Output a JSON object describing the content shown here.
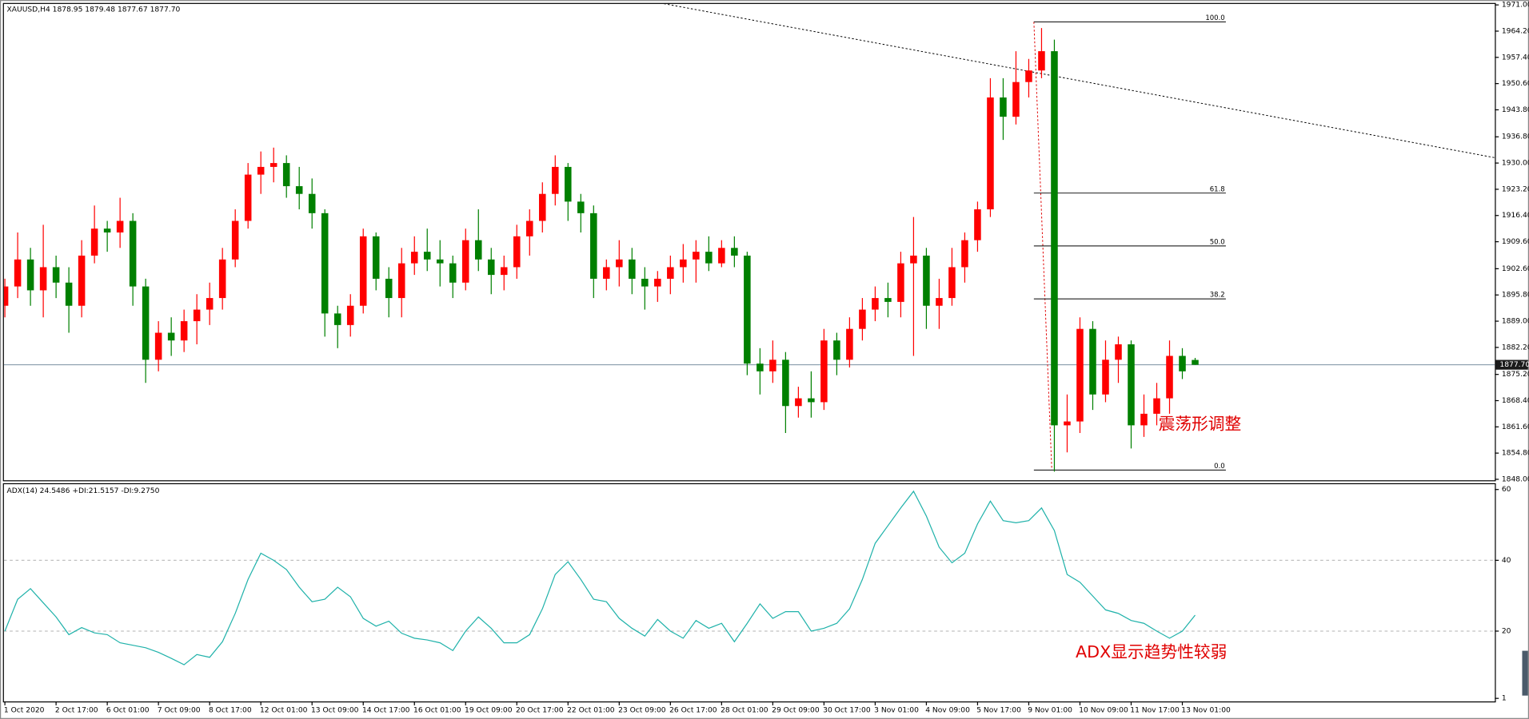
{
  "chart_data": {
    "type": "candlestick",
    "header": "XAUUSD,H4  1878.95 1879.48 1877.67 1877.70",
    "up_color": "#ff0000",
    "down_color": "#008000",
    "ylim": [
      1848,
      1971
    ],
    "yticks": [
      {
        "value": 1971,
        "label": "1971.00"
      },
      {
        "value": 1964.2,
        "label": "1964.20"
      },
      {
        "value": 1957.4,
        "label": "1957.40"
      },
      {
        "value": 1950.6,
        "label": "1950.60"
      },
      {
        "value": 1943.8,
        "label": "1943.80"
      },
      {
        "value": 1936.8,
        "label": "1936.80"
      },
      {
        "value": 1930,
        "label": "1930.00"
      },
      {
        "value": 1923.2,
        "label": "1923.20"
      },
      {
        "value": 1916.4,
        "label": "1916.40"
      },
      {
        "value": 1909.6,
        "label": "1909.60"
      },
      {
        "value": 1902.6,
        "label": "1902.60"
      },
      {
        "value": 1895.8,
        "label": "1895.80"
      },
      {
        "value": 1889,
        "label": "1889.00"
      },
      {
        "value": 1882.2,
        "label": "1882.20"
      },
      {
        "value": 1875.2,
        "label": "1875.20"
      },
      {
        "value": 1868.4,
        "label": "1868.40"
      },
      {
        "value": 1861.6,
        "label": "1861.60"
      },
      {
        "value": 1854.8,
        "label": "1854.80"
      },
      {
        "value": 1848,
        "label": "1848.00"
      }
    ],
    "current_price": {
      "value": 1877.7,
      "label": "1877.70"
    },
    "categories": [
      "1 Oct 2020",
      null,
      null,
      null,
      "2 Oct 17:00",
      null,
      null,
      null,
      "6 Oct 01:00",
      null,
      null,
      null,
      "7 Oct 09:00",
      null,
      null,
      null,
      "8 Oct 17:00",
      null,
      null,
      null,
      "12 Oct 01:00",
      null,
      null,
      null,
      "13 Oct 09:00",
      null,
      null,
      null,
      "14 Oct 17:00",
      null,
      null,
      null,
      "16 Oct 01:00",
      null,
      null,
      null,
      "19 Oct 09:00",
      null,
      null,
      null,
      "20 Oct 17:00",
      null,
      null,
      null,
      "22 Oct 01:00",
      null,
      null,
      null,
      "23 Oct 09:00",
      null,
      null,
      null,
      "26 Oct 17:00",
      null,
      null,
      null,
      "28 Oct 01:00",
      null,
      null,
      null,
      "29 Oct 09:00",
      null,
      null,
      null,
      "30 Oct 17:00",
      null,
      null,
      null,
      "3 Nov 01:00",
      null,
      null,
      null,
      "4 Nov 09:00",
      null,
      null,
      null,
      "5 Nov 17:00",
      null,
      null,
      null,
      "9 Nov 01:00",
      null,
      null,
      null,
      "10 Nov 09:00",
      null,
      null,
      null,
      "11 Nov 17:00",
      null,
      null,
      null,
      "13 Nov 01:00",
      null
    ],
    "ohlc": [
      [
        1893,
        1900,
        1890,
        1898
      ],
      [
        1898,
        1912,
        1895,
        1905
      ],
      [
        1905,
        1908,
        1893,
        1897
      ],
      [
        1897,
        1914,
        1890,
        1903
      ],
      [
        1903,
        1906,
        1895,
        1899
      ],
      [
        1899,
        1903,
        1886,
        1893
      ],
      [
        1893,
        1910,
        1890,
        1906
      ],
      [
        1906,
        1919,
        1904,
        1913
      ],
      [
        1913,
        1915,
        1907,
        1912
      ],
      [
        1912,
        1921,
        1908,
        1915
      ],
      [
        1915,
        1917,
        1893,
        1898
      ],
      [
        1898,
        1900,
        1873,
        1879
      ],
      [
        1879,
        1889,
        1876,
        1886
      ],
      [
        1886,
        1890,
        1880,
        1884
      ],
      [
        1884,
        1892,
        1881,
        1889
      ],
      [
        1889,
        1896,
        1883,
        1892
      ],
      [
        1892,
        1899,
        1888,
        1895
      ],
      [
        1895,
        1908,
        1892,
        1905
      ],
      [
        1905,
        1918,
        1903,
        1915
      ],
      [
        1915,
        1930,
        1913,
        1927
      ],
      [
        1927,
        1933,
        1922,
        1929
      ],
      [
        1929,
        1934,
        1925,
        1930
      ],
      [
        1930,
        1932,
        1921,
        1924
      ],
      [
        1924,
        1929,
        1918,
        1922
      ],
      [
        1922,
        1926,
        1913,
        1917
      ],
      [
        1917,
        1918,
        1885,
        1891
      ],
      [
        1891,
        1893,
        1882,
        1888
      ],
      [
        1888,
        1896,
        1885,
        1893
      ],
      [
        1893,
        1913,
        1891,
        1911
      ],
      [
        1911,
        1912,
        1897,
        1900
      ],
      [
        1900,
        1903,
        1890,
        1895
      ],
      [
        1895,
        1908,
        1890,
        1904
      ],
      [
        1904,
        1911,
        1901,
        1907
      ],
      [
        1907,
        1913,
        1902,
        1905
      ],
      [
        1905,
        1910,
        1898,
        1904
      ],
      [
        1904,
        1906,
        1895,
        1899
      ],
      [
        1899,
        1913,
        1897,
        1910
      ],
      [
        1910,
        1918,
        1902,
        1905
      ],
      [
        1905,
        1908,
        1896,
        1901
      ],
      [
        1901,
        1906,
        1897,
        1903
      ],
      [
        1903,
        1914,
        1900,
        1911
      ],
      [
        1911,
        1918,
        1906,
        1915
      ],
      [
        1915,
        1925,
        1912,
        1922
      ],
      [
        1922,
        1932,
        1919,
        1929
      ],
      [
        1929,
        1930,
        1915,
        1920
      ],
      [
        1920,
        1922,
        1912,
        1917
      ],
      [
        1917,
        1919,
        1895,
        1900
      ],
      [
        1900,
        1905,
        1897,
        1903
      ],
      [
        1903,
        1910,
        1898,
        1905
      ],
      [
        1905,
        1908,
        1896,
        1900
      ],
      [
        1900,
        1903,
        1892,
        1898
      ],
      [
        1898,
        1902,
        1894,
        1900
      ],
      [
        1900,
        1906,
        1896,
        1903
      ],
      [
        1903,
        1909,
        1899,
        1905
      ],
      [
        1905,
        1910,
        1899,
        1907
      ],
      [
        1907,
        1911,
        1902,
        1904
      ],
      [
        1904,
        1910,
        1903,
        1908
      ],
      [
        1908,
        1911,
        1903,
        1906
      ],
      [
        1906,
        1907,
        1875,
        1878
      ],
      [
        1878,
        1882,
        1870,
        1876
      ],
      [
        1876,
        1884,
        1873,
        1879
      ],
      [
        1879,
        1881,
        1860,
        1867
      ],
      [
        1867,
        1872,
        1864,
        1869
      ],
      [
        1869,
        1876,
        1864,
        1868
      ],
      [
        1868,
        1887,
        1866,
        1884
      ],
      [
        1884,
        1886,
        1875,
        1879
      ],
      [
        1879,
        1890,
        1877,
        1887
      ],
      [
        1887,
        1895,
        1884,
        1892
      ],
      [
        1892,
        1898,
        1889,
        1895
      ],
      [
        1895,
        1899,
        1890,
        1894
      ],
      [
        1894,
        1907,
        1890,
        1904
      ],
      [
        1904,
        1916,
        1880,
        1906
      ],
      [
        1906,
        1908,
        1887,
        1893
      ],
      [
        1893,
        1900,
        1887,
        1895
      ],
      [
        1895,
        1908,
        1893,
        1903
      ],
      [
        1903,
        1912,
        1899,
        1910
      ],
      [
        1910,
        1920,
        1907,
        1918
      ],
      [
        1918,
        1952,
        1916,
        1947
      ],
      [
        1947,
        1952,
        1936,
        1942
      ],
      [
        1942,
        1959,
        1940,
        1951
      ],
      [
        1951,
        1957,
        1947,
        1954
      ],
      [
        1954,
        1965,
        1952,
        1959
      ],
      [
        1959,
        1962,
        1850,
        1862
      ],
      [
        1862,
        1870,
        1855,
        1863
      ],
      [
        1863,
        1890,
        1860,
        1887
      ],
      [
        1887,
        1889,
        1866,
        1870
      ],
      [
        1870,
        1884,
        1868,
        1879
      ],
      [
        1879,
        1885,
        1873,
        1883
      ],
      [
        1883,
        1884,
        1856,
        1862
      ],
      [
        1862,
        1870,
        1859,
        1865
      ],
      [
        1865,
        1873,
        1862,
        1869
      ],
      [
        1869,
        1884,
        1865,
        1880
      ],
      [
        1880,
        1882,
        1874,
        1876
      ],
      [
        1878.95,
        1879.48,
        1877.67,
        1877.7
      ]
    ],
    "trendline": {
      "x": [
        51.2,
        116.4
      ],
      "y": [
        1971.5,
        1931.4
      ]
    },
    "fibonacci": {
      "x": [
        80.4,
        81.8
      ],
      "x_end": 95.4,
      "high": 1966.6,
      "low": 1850.4,
      "levels": [
        {
          "value": 100,
          "label": "100.0"
        },
        {
          "value": 61.8,
          "label": "61.8"
        },
        {
          "value": 50,
          "label": "50.0"
        },
        {
          "value": 38.2,
          "label": "38.2"
        },
        {
          "value": 0,
          "label": "0.0"
        }
      ]
    },
    "annotation": "震荡形调整",
    "indicator": {
      "header": "ADX(14) 24.5486 +DI:21.5157 -DI:9.2750",
      "color": "#20b2aa",
      "ylim": [
        0,
        61.5
      ],
      "yticks": [
        60,
        40,
        20,
        1
      ],
      "grid_values": [
        40,
        20
      ],
      "annotation": "ADX显示趋势性较弱",
      "values": [
        20,
        29,
        32,
        28,
        24,
        19,
        21,
        19.5,
        19,
        16.7,
        16,
        15.3,
        14,
        12.3,
        10.5,
        13.4,
        12.6,
        17,
        25,
        34.6,
        42,
        40,
        37.4,
        32.4,
        28.3,
        29,
        32.4,
        29.7,
        23.6,
        21.4,
        22.8,
        19.4,
        18,
        17.5,
        16.7,
        14.5,
        20,
        24,
        20.8,
        16.7,
        16.7,
        19,
        26.3,
        36,
        39.6,
        34.6,
        29,
        28.3,
        23.6,
        20.8,
        18.6,
        23.3,
        20,
        18,
        23,
        20.8,
        22.2,
        17,
        22.2,
        27.7,
        23.6,
        25.5,
        25.5,
        20,
        20.8,
        22.2,
        26.3,
        34.6,
        44.8,
        49.8,
        54.8,
        59.5,
        52.5,
        43.7,
        39.3,
        42,
        50.3,
        56.7,
        51.2,
        50.6,
        51.2,
        54.8,
        48.4,
        36,
        33.8,
        29.9,
        26,
        25,
        23,
        22.2,
        20,
        18,
        20,
        24.5
      ]
    }
  }
}
